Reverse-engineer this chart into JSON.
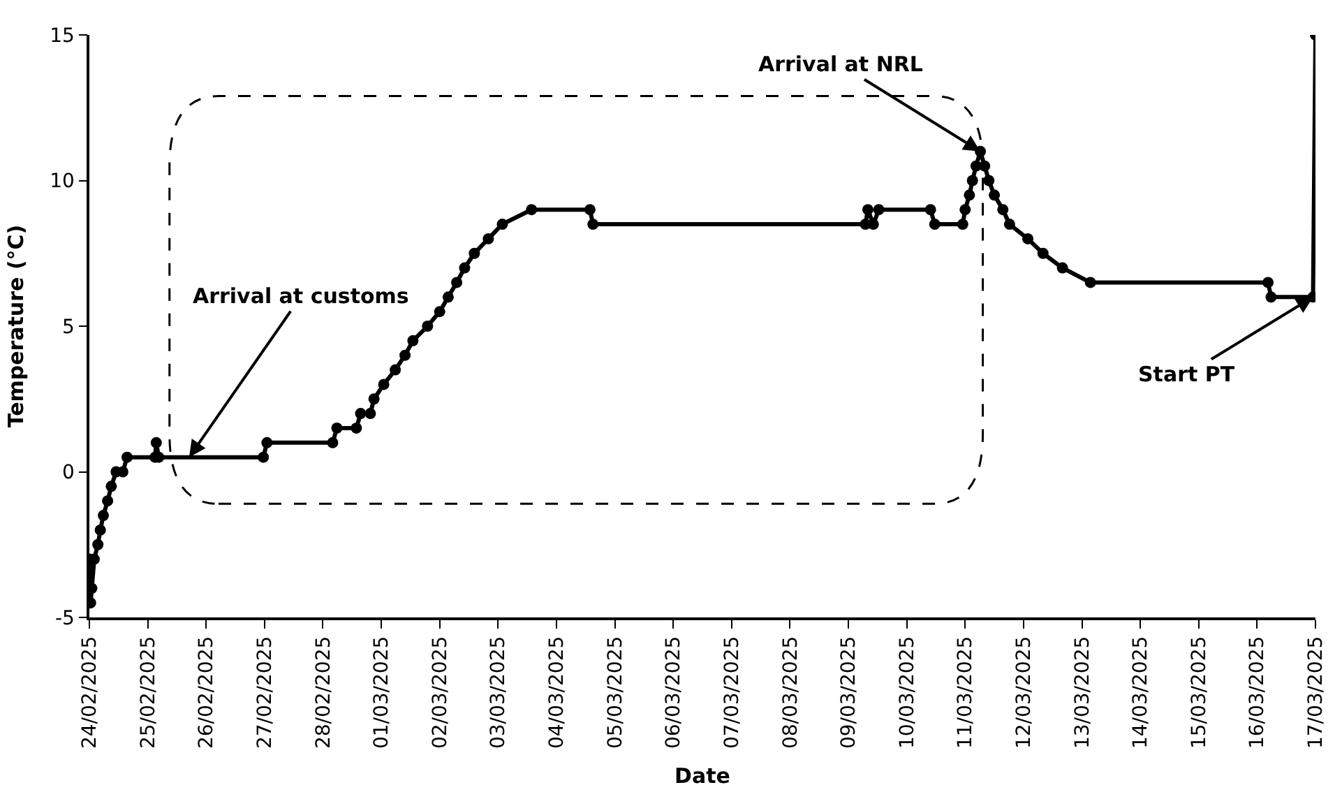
{
  "chart_data": {
    "type": "line",
    "xlabel": "Date",
    "ylabel": "Temperature (°C)",
    "marker": "circle",
    "line_style": "solid",
    "xlim": [
      "2025-02-24",
      "2025-03-17"
    ],
    "ylim": [
      -5,
      15
    ],
    "yticks": [
      -5,
      0,
      5,
      10,
      15
    ],
    "xticks": [
      {
        "value": "2025-02-24",
        "label": "24/02/2025"
      },
      {
        "value": "2025-02-25",
        "label": "25/02/2025"
      },
      {
        "value": "2025-02-26",
        "label": "26/02/2025"
      },
      {
        "value": "2025-02-27",
        "label": "27/02/2025"
      },
      {
        "value": "2025-02-28",
        "label": "28/02/2025"
      },
      {
        "value": "2025-03-01",
        "label": "01/03/2025"
      },
      {
        "value": "2025-03-02",
        "label": "02/03/2025"
      },
      {
        "value": "2025-03-03",
        "label": "03/03/2025"
      },
      {
        "value": "2025-03-04",
        "label": "04/03/2025"
      },
      {
        "value": "2025-03-05",
        "label": "05/03/2025"
      },
      {
        "value": "2025-03-06",
        "label": "06/03/2025"
      },
      {
        "value": "2025-03-07",
        "label": "07/03/2025"
      },
      {
        "value": "2025-03-08",
        "label": "08/03/2025"
      },
      {
        "value": "2025-03-09",
        "label": "09/03/2025"
      },
      {
        "value": "2025-03-10",
        "label": "10/03/2025"
      },
      {
        "value": "2025-03-11",
        "label": "11/03/2025"
      },
      {
        "value": "2025-03-12",
        "label": "12/03/2025"
      },
      {
        "value": "2025-03-13",
        "label": "13/03/2025"
      },
      {
        "value": "2025-03-14",
        "label": "14/03/2025"
      },
      {
        "value": "2025-03-15",
        "label": "15/03/2025"
      },
      {
        "value": "2025-03-16",
        "label": "16/03/2025"
      },
      {
        "value": "2025-03-17",
        "label": "17/03/2025"
      }
    ],
    "x": [
      "2025-02-24T00:00",
      "2025-02-24T00:30",
      "2025-02-24T01:00",
      "2025-02-24T02:00",
      "2025-02-24T03:30",
      "2025-02-24T04:30",
      "2025-02-24T05:45",
      "2025-02-24T07:30",
      "2025-02-24T09:00",
      "2025-02-24T11:00",
      "2025-02-24T13:45",
      "2025-02-24T15:30",
      "2025-02-25T03:00",
      "2025-02-25T03:30",
      "2025-02-25T04:30",
      "2025-02-26T23:30",
      "2025-02-27T01:00",
      "2025-02-28T04:00",
      "2025-02-28T05:45",
      "2025-02-28T13:45",
      "2025-02-28T15:30",
      "2025-02-28T19:30",
      "2025-02-28T21:00",
      "2025-03-01T01:00",
      "2025-03-01T05:45",
      "2025-03-01T09:45",
      "2025-03-01T13:00",
      "2025-03-01T19:00",
      "2025-03-02T00:00",
      "2025-03-02T03:30",
      "2025-03-02T07:00",
      "2025-03-02T10:15",
      "2025-03-02T14:15",
      "2025-03-02T20:00",
      "2025-03-03T01:45",
      "2025-03-03T13:45",
      "2025-03-04T13:45",
      "2025-03-04T15:00",
      "2025-03-09T07:00",
      "2025-03-09T08:00",
      "2025-03-09T10:15",
      "2025-03-09T12:30",
      "2025-03-10T09:45",
      "2025-03-10T11:30",
      "2025-03-10T23:00",
      "2025-03-11T00:00",
      "2025-03-11T01:45",
      "2025-03-11T03:00",
      "2025-03-11T04:30",
      "2025-03-11T06:15",
      "2025-03-11T08:00",
      "2025-03-11T09:45",
      "2025-03-11T12:00",
      "2025-03-11T15:30",
      "2025-03-11T18:15",
      "2025-03-12T01:45",
      "2025-03-12T08:00",
      "2025-03-12T16:00",
      "2025-03-13T03:30",
      "2025-03-16T04:30",
      "2025-03-16T05:45",
      "2025-03-16T23:00",
      "2025-03-17T00:00"
    ],
    "series": [
      {
        "color": "#000000",
        "values": [
          -3,
          -4.5,
          -4,
          -3,
          -2.5,
          -2,
          -1.5,
          -1,
          -0.5,
          0,
          0,
          0.5,
          0.5,
          1,
          0.5,
          0.5,
          1,
          1,
          1.5,
          1.5,
          2,
          2,
          2.5,
          3,
          3.5,
          4,
          4.5,
          5,
          5.5,
          6,
          6.5,
          7,
          7.5,
          8,
          8.5,
          9,
          9,
          8.5,
          8.5,
          9,
          8.5,
          9,
          9,
          8.5,
          8.5,
          9,
          9.5,
          10,
          10.5,
          11,
          10.5,
          10,
          9.5,
          9,
          8.5,
          8,
          7.5,
          7,
          6.5,
          6.5,
          6,
          6,
          15
        ]
      }
    ],
    "annotations": [
      {
        "text": "Arrival at customs",
        "x": "2025-02-25T17:00",
        "y": 0.5
      },
      {
        "text": "Arrival at NRL",
        "x": "2025-03-11T06:15",
        "y": 11
      },
      {
        "text": "Start PT",
        "x": "2025-03-16T23:00",
        "y": 6
      }
    ]
  }
}
